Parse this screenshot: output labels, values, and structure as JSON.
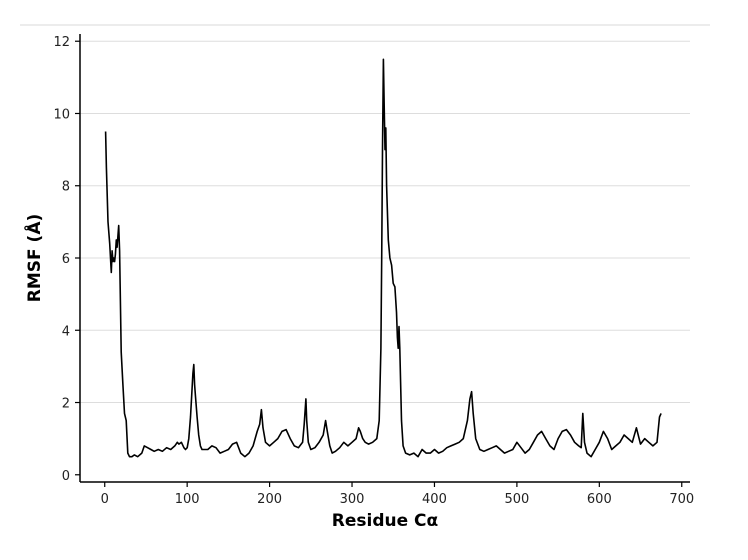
{
  "chart_data": {
    "type": "line",
    "title": "",
    "xlabel": "Residue Cα",
    "ylabel": "RMSF (Å)",
    "xlim": [
      -30,
      710
    ],
    "ylim": [
      -0.2,
      12.2
    ],
    "xticks": [
      0,
      100,
      200,
      300,
      400,
      500,
      600,
      700
    ],
    "yticks": [
      0,
      2,
      4,
      6,
      8,
      10,
      12
    ],
    "grid": "horizontal",
    "legend": "none",
    "line_color": "#000000",
    "grid_color": "#dddddd",
    "series": [
      {
        "x": [
          1,
          2,
          4,
          6,
          8,
          9,
          10,
          11,
          12,
          13,
          14,
          15,
          16,
          17,
          18,
          19,
          20,
          22,
          24,
          26,
          28,
          30,
          33,
          36,
          40,
          45,
          48,
          52,
          56,
          60,
          65,
          70,
          75,
          80,
          85,
          88,
          90,
          93,
          96,
          98,
          100,
          102,
          104,
          106,
          107,
          108,
          109,
          110,
          112,
          114,
          116,
          118,
          120,
          125,
          130,
          135,
          140,
          145,
          150,
          155,
          160,
          165,
          170,
          175,
          180,
          185,
          188,
          190,
          192,
          195,
          200,
          205,
          210,
          215,
          220,
          225,
          230,
          235,
          240,
          242,
          244,
          245,
          247,
          250,
          255,
          260,
          265,
          268,
          270,
          273,
          276,
          280,
          285,
          290,
          295,
          300,
          305,
          308,
          310,
          313,
          316,
          320,
          325,
          330,
          333,
          335,
          336,
          337,
          338,
          339,
          340,
          341,
          342,
          344,
          346,
          348,
          350,
          352,
          354,
          355,
          356,
          357,
          358,
          360,
          362,
          365,
          370,
          375,
          380,
          385,
          390,
          395,
          400,
          405,
          410,
          415,
          420,
          425,
          430,
          435,
          440,
          443,
          445,
          447,
          450,
          455,
          460,
          465,
          470,
          475,
          480,
          485,
          490,
          495,
          500,
          505,
          510,
          515,
          520,
          525,
          530,
          535,
          540,
          545,
          550,
          555,
          560,
          565,
          570,
          575,
          578,
          580,
          582,
          585,
          590,
          595,
          600,
          605,
          610,
          615,
          620,
          625,
          630,
          635,
          640,
          645,
          650,
          655,
          660,
          665,
          670,
          673,
          675
        ],
        "y": [
          9.5,
          8.5,
          7.0,
          6.4,
          5.6,
          6.2,
          5.9,
          6.0,
          5.9,
          6.1,
          6.5,
          6.3,
          6.6,
          6.9,
          6.2,
          4.8,
          3.4,
          2.5,
          1.7,
          1.5,
          0.6,
          0.5,
          0.5,
          0.55,
          0.5,
          0.6,
          0.8,
          0.75,
          0.7,
          0.65,
          0.7,
          0.65,
          0.75,
          0.7,
          0.8,
          0.9,
          0.85,
          0.9,
          0.75,
          0.7,
          0.75,
          1.0,
          1.6,
          2.4,
          2.8,
          3.05,
          2.5,
          2.2,
          1.6,
          1.1,
          0.8,
          0.7,
          0.7,
          0.7,
          0.8,
          0.75,
          0.6,
          0.65,
          0.7,
          0.85,
          0.9,
          0.6,
          0.5,
          0.6,
          0.8,
          1.2,
          1.4,
          1.8,
          1.3,
          0.9,
          0.8,
          0.9,
          1.0,
          1.2,
          1.25,
          1.0,
          0.8,
          0.75,
          0.9,
          1.4,
          2.1,
          1.5,
          0.9,
          0.7,
          0.75,
          0.9,
          1.1,
          1.5,
          1.2,
          0.8,
          0.6,
          0.65,
          0.75,
          0.9,
          0.8,
          0.9,
          1.0,
          1.3,
          1.2,
          1.0,
          0.9,
          0.85,
          0.9,
          1.0,
          1.5,
          3.5,
          6.0,
          9.0,
          11.5,
          10.2,
          9.0,
          9.6,
          8.0,
          6.5,
          6.0,
          5.8,
          5.3,
          5.2,
          4.5,
          3.8,
          3.5,
          4.1,
          3.5,
          1.5,
          0.8,
          0.6,
          0.55,
          0.6,
          0.5,
          0.7,
          0.6,
          0.6,
          0.7,
          0.6,
          0.65,
          0.75,
          0.8,
          0.85,
          0.9,
          1.0,
          1.5,
          2.1,
          2.3,
          1.7,
          1.0,
          0.7,
          0.65,
          0.7,
          0.75,
          0.8,
          0.7,
          0.6,
          0.65,
          0.7,
          0.9,
          0.75,
          0.6,
          0.7,
          0.9,
          1.1,
          1.2,
          1.0,
          0.8,
          0.7,
          1.0,
          1.2,
          1.25,
          1.1,
          0.9,
          0.8,
          0.75,
          1.7,
          0.9,
          0.6,
          0.5,
          0.7,
          0.9,
          1.2,
          1.0,
          0.7,
          0.8,
          0.9,
          1.1,
          1.0,
          0.9,
          1.3,
          0.85,
          1.0,
          0.9,
          0.8,
          0.9,
          1.6,
          1.7
        ]
      }
    ]
  }
}
